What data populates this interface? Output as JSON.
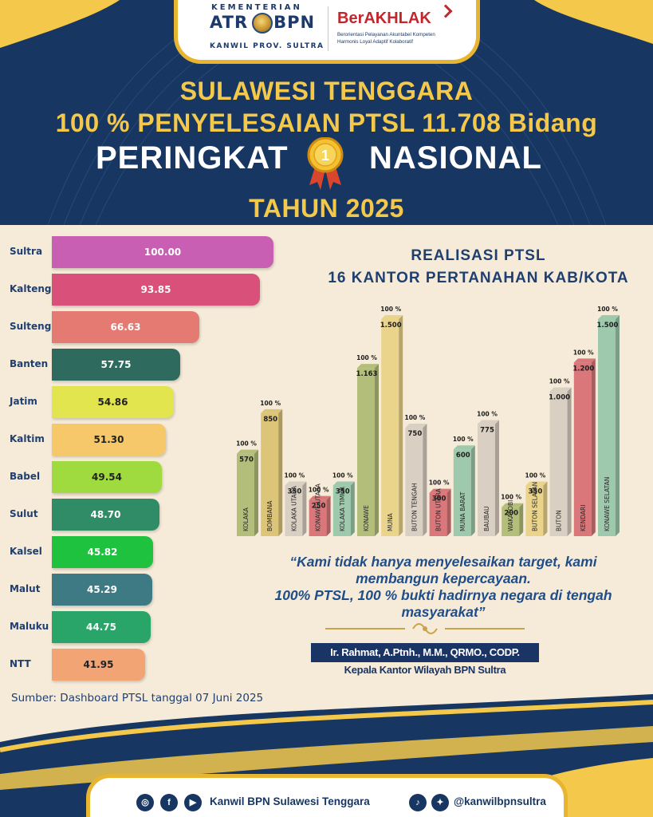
{
  "header": {
    "ministry_top": "KEMENTERIAN",
    "ministry_left": "ATR",
    "ministry_right": "BPN",
    "ministry_sub": "KANWIL PROV. SULTRA",
    "akhlak_title": "BerAKHLAK",
    "akhlak_line1": "Berorientasi Pelayanan Akuntabel Kompeten",
    "akhlak_line2": "Harmonis Loyal Adaptif Kolaboratif"
  },
  "headline": {
    "line1": "SULAWESI TENGGARA",
    "line2": "100 % PENYELESAIAN PTSL 11.708 Bidang",
    "line3_left": "PERINGKAT",
    "medal_rank": "1",
    "line3_right": "NASIONAL",
    "line4": "TAHUN 2025"
  },
  "colors": {
    "navy": "#173762",
    "gold": "#f3c84b",
    "cream": "#f6ebd8"
  },
  "source_text": "Sumber: Dashboard PTSL tanggal 07 Juni 2025",
  "quote": {
    "lines": [
      "“Kami tidak hanya menyelesaikan target, kami",
      "membangun kepercayaan.",
      "100% PTSL, 100 % bukti hadirnya negara di tengah",
      "masyarakat”"
    ],
    "name": "Ir. Rahmat, A.Ptnh., M.M., QRMO., CODP.",
    "title": "Kepala Kantor Wilayah BPN Sultra"
  },
  "footer": {
    "page_name": "Kanwil BPN Sulawesi Tenggara",
    "handle": "@kanwilbpnsultra",
    "icons": [
      "instagram-icon",
      "facebook-icon",
      "youtube-icon",
      "tiktok-icon",
      "twitter-icon"
    ]
  },
  "chart_data": [
    {
      "type": "bar",
      "orientation": "horizontal",
      "title": "",
      "categories": [
        "Sultra",
        "Kalteng",
        "Sulteng",
        "Banten",
        "Jatim",
        "Kaltim",
        "Babel",
        "Sulut",
        "Kalsel",
        "Malut",
        "Maluku",
        "NTT"
      ],
      "values": [
        100.0,
        93.85,
        66.63,
        57.75,
        54.86,
        51.3,
        49.54,
        48.7,
        45.82,
        45.29,
        44.75,
        41.95
      ],
      "labels": [
        "100.00",
        "93.85",
        "66.63",
        "57.75",
        "54.86",
        "51.30",
        "49.54",
        "48.70",
        "45.82",
        "45.29",
        "44.75",
        "41.95"
      ],
      "colors": [
        "#c95fb3",
        "#d9507a",
        "#e57a72",
        "#2e6b5e",
        "#e3e54e",
        "#f7c86a",
        "#9fdb3f",
        "#2f8c67",
        "#1ec23e",
        "#3e7a84",
        "#2aa56a",
        "#f2a474"
      ],
      "label_colors": [
        "#ffffff",
        "#ffffff",
        "#ffffff",
        "#ffffff",
        "#222222",
        "#222222",
        "#222222",
        "#ffffff",
        "#ffffff",
        "#ffffff",
        "#ffffff",
        "#222222"
      ],
      "grid": false
    },
    {
      "type": "bar",
      "title": "REALISASI PTSL",
      "subtitle": "16 KANTOR PERTANAHAN KAB/KOTA",
      "categories": [
        "KOLAKA",
        "BOMBANA",
        "KOLAKA UTARA",
        "KONAWE UTARA",
        "KOLAKA TIMUR",
        "KONAWE",
        "MUNA",
        "BUTON TENGAH",
        "BUTON UTARA",
        "MUNA BARAT",
        "BAUBAU",
        "WAKATOBI",
        "BUTON SELATAN",
        "BUTON",
        "KENDARI",
        "KONAWE SELATAN"
      ],
      "values": [
        570,
        850,
        350,
        250,
        350,
        1163,
        1500,
        750,
        300,
        600,
        775,
        200,
        350,
        1000,
        1200,
        1500
      ],
      "value_labels": [
        "570",
        "850",
        "350",
        "250",
        "350",
        "1.163",
        "1.500",
        "750",
        "300",
        "600",
        "775",
        "200",
        "350",
        "1.000",
        "1.200",
        "1.500"
      ],
      "percent_labels": [
        "100 %",
        "100 %",
        "100 %",
        "100 %",
        "100 %",
        "100 %",
        "100 %",
        "100 %",
        "100 %",
        "100 %",
        "100 %",
        "100 %",
        "100 %",
        "100 %",
        "100 %",
        "100 %"
      ],
      "colors": [
        "#b3be7a",
        "#dcc479",
        "#d9cfc2",
        "#d9777a",
        "#9fc9ac",
        "#b3be7a",
        "#ead38a",
        "#d9cfc2",
        "#d9777a",
        "#9fc9ac",
        "#d9cfc2",
        "#b3be7a",
        "#ead38a",
        "#d9cfc2",
        "#d9777a",
        "#9fc9ac"
      ],
      "grid": false
    }
  ]
}
